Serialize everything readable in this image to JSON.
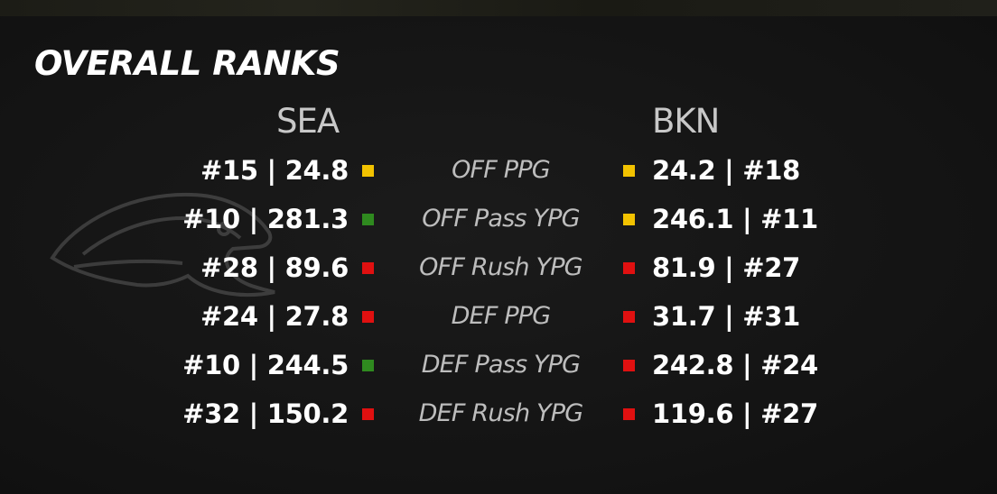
{
  "title": "OVERALL RANKS",
  "teams": {
    "home": "SEA",
    "away": "BKN"
  },
  "colors": {
    "yellow": "#f2c200",
    "green": "#2f8a1f",
    "red": "#e01010",
    "label": "#bdbdbd",
    "value": "#ffffff"
  },
  "logo_icon": "seahawk-logo-watermark",
  "rows": [
    {
      "label": "OFF PPG",
      "home": "#15 | 24.8",
      "home_color": "#f2c200",
      "away": "24.2 | #18",
      "away_color": "#f2c200"
    },
    {
      "label": "OFF Pass YPG",
      "home": "#10 | 281.3",
      "home_color": "#2f8a1f",
      "away": "246.1 | #11",
      "away_color": "#f2c200"
    },
    {
      "label": "OFF Rush YPG",
      "home": "#28 | 89.6",
      "home_color": "#e01010",
      "away": "81.9 | #27",
      "away_color": "#e01010"
    },
    {
      "label": "DEF PPG",
      "home": "#24 | 27.8",
      "home_color": "#e01010",
      "away": "31.7 | #31",
      "away_color": "#e01010"
    },
    {
      "label": "DEF Pass YPG",
      "home": "#10 | 244.5",
      "home_color": "#2f8a1f",
      "away": "242.8 | #24",
      "away_color": "#e01010"
    },
    {
      "label": "DEF Rush YPG",
      "home": "#32 | 150.2",
      "home_color": "#e01010",
      "away": "119.6 | #27",
      "away_color": "#e01010"
    }
  ]
}
